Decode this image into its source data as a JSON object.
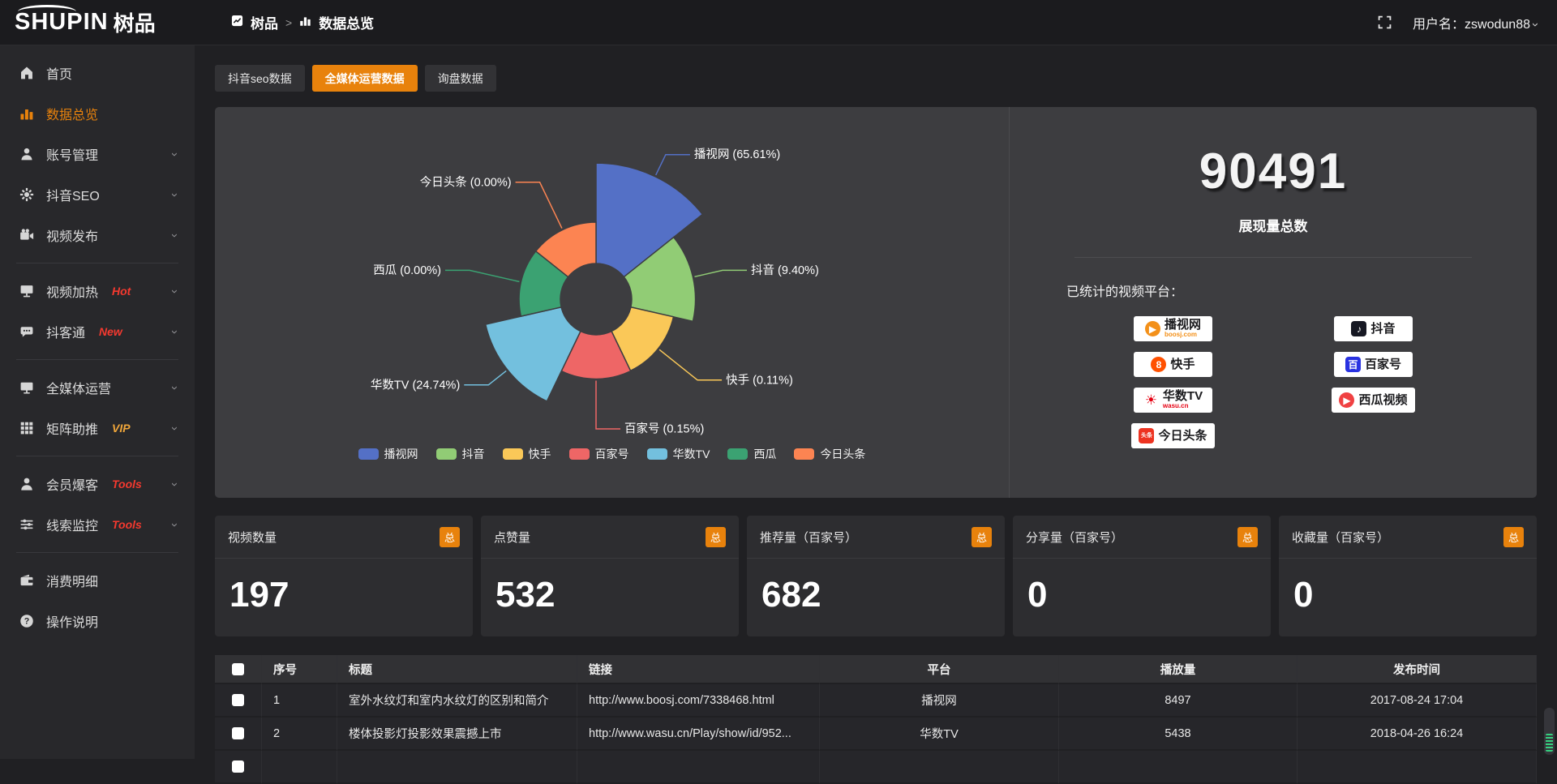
{
  "topbar": {
    "logo_text": "SHUPIN",
    "logo_cjk": "树品",
    "breadcrumb_home": "树品",
    "breadcrumb_sep": ">",
    "breadcrumb_current": "数据总览",
    "username": "用户名：zswodun88"
  },
  "sidebar": {
    "items": [
      {
        "label": "首页",
        "icon": "home-icon"
      },
      {
        "label": "数据总览",
        "icon": "chart-icon",
        "active": true
      },
      {
        "label": "账号管理",
        "icon": "user-icon",
        "chevron": true
      },
      {
        "label": "抖音SEO",
        "icon": "gear-icon",
        "chevron": true
      },
      {
        "label": "视频发布",
        "icon": "camera-icon",
        "chevron": true
      },
      {
        "divider": true
      },
      {
        "label": "视频加热",
        "icon": "screen-icon",
        "chevron": true,
        "badge": "Hot",
        "badge_color": "#f5392f"
      },
      {
        "label": "抖客通",
        "icon": "chat-icon",
        "chevron": true,
        "badge": "New",
        "badge_color": "#f5392f"
      },
      {
        "divider": true
      },
      {
        "label": "全媒体运营",
        "icon": "monitor-icon",
        "chevron": true
      },
      {
        "label": "矩阵助推",
        "icon": "grid-icon",
        "chevron": true,
        "badge": "VIP",
        "badge_color": "#f0a63a"
      },
      {
        "divider": true
      },
      {
        "label": "会员爆客",
        "icon": "member-icon",
        "chevron": true,
        "badge": "Tools",
        "badge_color": "#f5392f"
      },
      {
        "label": "线索监控",
        "icon": "sliders-icon",
        "chevron": true,
        "badge": "Tools",
        "badge_color": "#f5392f"
      },
      {
        "divider": true
      },
      {
        "label": "消费明细",
        "icon": "wallet-icon"
      },
      {
        "label": "操作说明",
        "icon": "help-icon"
      }
    ]
  },
  "tabs": [
    {
      "label": "抖音seo数据",
      "active": false
    },
    {
      "label": "全媒体运营数据",
      "active": true
    },
    {
      "label": "询盘数据",
      "active": false
    }
  ],
  "chart_data": {
    "type": "pie",
    "subtype": "nightingale-rose-donut",
    "unit": "%",
    "slices": [
      {
        "name": "播视网",
        "value": 65.61,
        "pct": "65.61",
        "color": "#5470c6"
      },
      {
        "name": "抖音",
        "value": 9.4,
        "pct": "9.40",
        "color": "#91cc75"
      },
      {
        "name": "快手",
        "value": 0.11,
        "pct": "0.11",
        "color": "#fac858"
      },
      {
        "name": "百家号",
        "value": 0.15,
        "pct": "0.15",
        "color": "#ee6666"
      },
      {
        "name": "华数TV",
        "value": 24.74,
        "pct": "24.74",
        "color": "#73c0de"
      },
      {
        "name": "西瓜",
        "value": 0.0,
        "pct": "0.00",
        "color": "#3ba272"
      },
      {
        "name": "今日头条",
        "value": 0.0,
        "pct": "0.00",
        "color": "#fc8452"
      }
    ],
    "legend": [
      "播视网",
      "抖音",
      "快手",
      "百家号",
      "华数TV",
      "西瓜",
      "今日头条"
    ],
    "legend_position": "bottom",
    "label_format": "{name} ({pct}%)"
  },
  "summary": {
    "total_value": "90491",
    "total_label": "展现量总数",
    "platforms_label": "已统计的视频平台：",
    "platforms": [
      {
        "name": "播视网",
        "sub": "boosj.com",
        "sub_color": "#f39019",
        "glyph": "▶",
        "color": "#f39019",
        "round": true
      },
      {
        "name": "抖音",
        "glyph": "♪",
        "color": "#161823"
      },
      {
        "name": "快手",
        "glyph": "8",
        "color": "#ff5000",
        "round": true
      },
      {
        "name": "百家号",
        "glyph": "百",
        "color": "#2932e1"
      },
      {
        "name": "华数TV",
        "sub": "wasu.cn",
        "sub_color": "#e60012",
        "glyph": "☀",
        "color": "#e60012",
        "nobg": true
      },
      {
        "name": "西瓜视频",
        "glyph": "▶",
        "color": "#f04142",
        "round": true
      },
      {
        "name": "今日头条",
        "glyph": "头条",
        "color": "#ed3321"
      }
    ]
  },
  "stats": [
    {
      "label": "视频数量",
      "badge": "总",
      "value": "197"
    },
    {
      "label": "点赞量",
      "badge": "总",
      "value": "532"
    },
    {
      "label": "推荐量（百家号）",
      "badge": "总",
      "value": "682"
    },
    {
      "label": "分享量（百家号）",
      "badge": "总",
      "value": "0"
    },
    {
      "label": "收藏量（百家号）",
      "badge": "总",
      "value": "0"
    }
  ],
  "table": {
    "headers": [
      "序号",
      "标题",
      "链接",
      "平台",
      "播放量",
      "发布时间"
    ],
    "rows": [
      {
        "no": "1",
        "title": "室外水纹灯和室内水纹灯的区别和简介",
        "link": "http://www.boosj.com/7338468.html",
        "platform": "播视网",
        "plays": "8497",
        "time": "2017-08-24 17:04"
      },
      {
        "no": "2",
        "title": "楼体投影灯投影效果震撼上市",
        "link": "http://www.wasu.cn/Play/show/id/952...",
        "platform": "华数TV",
        "plays": "5438",
        "time": "2018-04-26 16:24"
      }
    ]
  },
  "colors": {
    "accent": "#e8820c",
    "panel_bg": "#3d3d40"
  }
}
